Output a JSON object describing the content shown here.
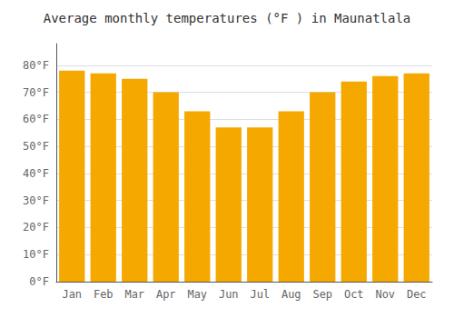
{
  "chart_data": {
    "type": "bar",
    "title": "Average monthly temperatures (°F ) in Maunatlala",
    "categories": [
      "Jan",
      "Feb",
      "Mar",
      "Apr",
      "May",
      "Jun",
      "Jul",
      "Aug",
      "Sep",
      "Oct",
      "Nov",
      "Dec"
    ],
    "values": [
      78,
      77,
      75,
      70,
      63,
      57,
      57,
      63,
      70,
      74,
      76,
      77
    ],
    "color": "#F5A800",
    "ylim": [
      0,
      88
    ],
    "yticks": [
      {
        "value": 0,
        "label": "0°F"
      },
      {
        "value": 10,
        "label": "10°F"
      },
      {
        "value": 20,
        "label": "20°F"
      },
      {
        "value": 30,
        "label": "30°F"
      },
      {
        "value": 40,
        "label": "40°F"
      },
      {
        "value": 50,
        "label": "50°F"
      },
      {
        "value": 60,
        "label": "60°F"
      },
      {
        "value": 70,
        "label": "70°F"
      },
      {
        "value": 80,
        "label": "80°F"
      }
    ],
    "grid": true
  }
}
